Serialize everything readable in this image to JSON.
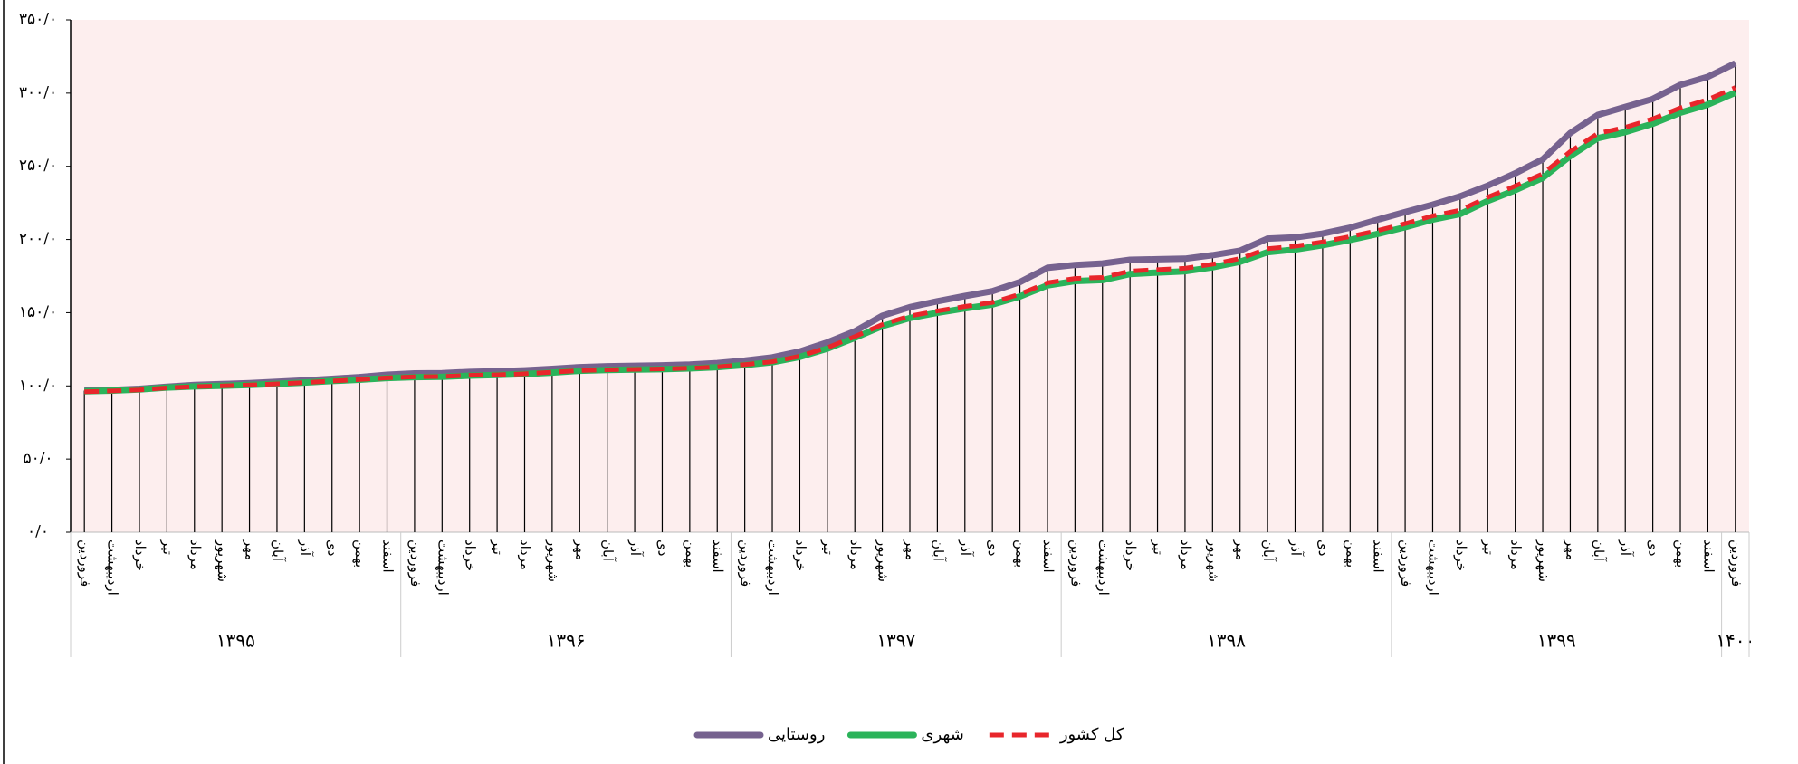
{
  "chart_data": {
    "type": "line",
    "categories": [
      "فروردین",
      "اردیبهشت",
      "خرداد",
      "تیر",
      "مرداد",
      "شهریور",
      "مهر",
      "آبان",
      "آذر",
      "دی",
      "بهمن",
      "اسفند",
      "فروردین",
      "اردیبهشت",
      "خرداد",
      "تیر",
      "مرداد",
      "شهریور",
      "مهر",
      "آبان",
      "آذر",
      "دی",
      "بهمن",
      "اسفند",
      "فروردین",
      "اردیبهشت",
      "خرداد",
      "تیر",
      "مرداد",
      "شهریور",
      "مهر",
      "آبان",
      "آذر",
      "دی",
      "بهمن",
      "اسفند",
      "فروردین",
      "اردیبهشت",
      "خرداد",
      "تیر",
      "مرداد",
      "شهریور",
      "مهر",
      "آبان",
      "آذر",
      "دی",
      "بهمن",
      "اسفند",
      "فروردین",
      "اردیبهشت",
      "خرداد",
      "تیر",
      "مرداد",
      "شهریور",
      "مهر",
      "آبان",
      "آذر",
      "دی",
      "بهمن",
      "اسفند",
      "فروردین"
    ],
    "year_groups": [
      {
        "label": "۱۳۹۵",
        "span": 12
      },
      {
        "label": "۱۳۹۶",
        "span": 12
      },
      {
        "label": "۱۳۹۷",
        "span": 12
      },
      {
        "label": "۱۳۹۸",
        "span": 12
      },
      {
        "label": "۱۳۹۹",
        "span": 12
      },
      {
        "label": "۱۴۰۰",
        "span": 1
      }
    ],
    "series": [
      {
        "name": "روستایی",
        "color": "#76628f",
        "style": "solid",
        "values": [
          96.8,
          97.3,
          98.0,
          99.4,
          100.6,
          101.2,
          101.9,
          102.8,
          103.7,
          104.8,
          106.0,
          107.6,
          108.5,
          108.7,
          109.5,
          110.0,
          110.6,
          111.6,
          112.8,
          113.4,
          113.7,
          114.0,
          114.5,
          115.6,
          117.3,
          119.5,
          123.5,
          129.7,
          137.3,
          147.9,
          153.8,
          157.8,
          161.4,
          164.7,
          170.9,
          180.6,
          182.6,
          183.6,
          186.1,
          186.5,
          186.9,
          189.3,
          192.4,
          200.6,
          201.4,
          204.0,
          208.1,
          213.5,
          218.8,
          223.8,
          229.5,
          236.8,
          245.2,
          254.8,
          272.7,
          285.1,
          290.6,
          296.0,
          305.6,
          311.1,
          320.4
        ]
      },
      {
        "name": "شهری",
        "color": "#2bb35a",
        "style": "solid",
        "values": [
          96.3,
          96.8,
          97.6,
          98.9,
          99.6,
          100.1,
          100.6,
          101.4,
          102.3,
          103.3,
          104.2,
          105.4,
          106.0,
          106.2,
          107.0,
          107.4,
          108.1,
          109.1,
          110.3,
          110.8,
          111.1,
          111.4,
          111.9,
          112.8,
          114.3,
          116.1,
          119.8,
          125.4,
          132.8,
          140.8,
          146.4,
          149.9,
          152.9,
          155.6,
          161.1,
          168.6,
          171.6,
          172.3,
          176.4,
          177.4,
          178.3,
          181.0,
          184.8,
          191.3,
          193.1,
          196.1,
          199.7,
          203.8,
          208.4,
          213.6,
          217.4,
          226.3,
          233.7,
          242.1,
          257.0,
          269.2,
          273.4,
          279.1,
          286.6,
          292.2,
          300.3
        ]
      },
      {
        "name": "کل کشور",
        "color": "#e8262b",
        "style": "dashed",
        "values": [
          96.0,
          96.5,
          97.3,
          98.6,
          99.5,
          100.0,
          100.6,
          101.4,
          102.3,
          103.3,
          104.3,
          105.5,
          106.2,
          106.4,
          107.2,
          107.6,
          108.3,
          109.3,
          110.5,
          111.0,
          111.3,
          111.6,
          112.1,
          113.0,
          114.6,
          116.5,
          120.3,
          126.1,
          133.7,
          141.9,
          147.7,
          151.2,
          154.3,
          157.0,
          162.7,
          170.4,
          173.4,
          174.1,
          178.4,
          179.4,
          180.3,
          183.1,
          187.0,
          193.7,
          195.4,
          198.3,
          202.0,
          206.1,
          210.8,
          216.1,
          220.0,
          228.9,
          236.5,
          244.9,
          260.0,
          272.4,
          276.6,
          282.4,
          289.9,
          295.6,
          303.8
        ]
      }
    ],
    "ylim": [
      0,
      350
    ],
    "yticks": [
      {
        "value": 0,
        "label": "۰/۰"
      },
      {
        "value": 50,
        "label": "۵۰/۰"
      },
      {
        "value": 100,
        "label": "۱۰۰/۰"
      },
      {
        "value": 150,
        "label": "۱۵۰/۰"
      },
      {
        "value": 200,
        "label": "۲۰۰/۰"
      },
      {
        "value": 250,
        "label": "۲۵۰/۰"
      },
      {
        "value": 300,
        "label": "۳۰۰/۰"
      },
      {
        "value": 350,
        "label": "۳۵۰/۰"
      }
    ],
    "plot_background": "#fdeeee",
    "drop_lines": true,
    "legend": "bottom"
  }
}
